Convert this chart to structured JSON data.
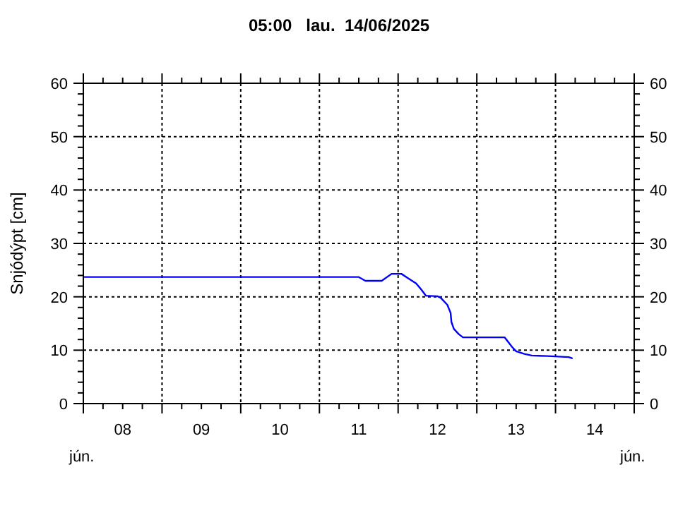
{
  "chart_data": {
    "type": "line",
    "title": "05:00   lau.  14/06/2025",
    "ylabel": "Snjódýpt [cm]",
    "x": [
      "2025-06-08T00:00",
      "2025-06-11T12:00",
      "2025-06-11T14:00",
      "2025-06-11T19:00",
      "2025-06-11T22:00",
      "2025-06-12T01:00",
      "2025-06-12T03:00",
      "2025-06-12T05:30",
      "2025-06-12T07:00",
      "2025-06-12T08:30",
      "2025-06-12T12:00",
      "2025-06-12T13:00",
      "2025-06-12T15:00",
      "2025-06-12T16:00",
      "2025-06-12T16:15",
      "2025-06-12T17:00",
      "2025-06-12T18:30",
      "2025-06-12T19:45",
      "2025-06-13T08:30",
      "2025-06-13T09:30",
      "2025-06-13T10:45",
      "2025-06-13T12:00",
      "2025-06-13T14:30",
      "2025-06-13T16:45",
      "2025-06-13T21:30",
      "2025-06-14T04:00",
      "2025-06-14T05:00"
    ],
    "series": [
      {
        "color": "#0000ff",
        "values": [
          23.7,
          23.7,
          23.0,
          23.0,
          24.3,
          24.3,
          23.5,
          22.5,
          21.4,
          20.2,
          20.1,
          19.8,
          18.5,
          17.0,
          15.3,
          14.0,
          13.0,
          12.4,
          12.4,
          11.6,
          10.6,
          9.8,
          9.3,
          9.0,
          8.9,
          8.7,
          8.5
        ]
      }
    ],
    "xlim": [
      "2025-06-08T00:00",
      "2025-06-15T00:00"
    ],
    "xticks": [
      {
        "value": "2025-06-08T00:00",
        "label": null
      },
      {
        "value": "2025-06-08T06:00",
        "label": null
      },
      {
        "value": "2025-06-08T12:00",
        "label": "08"
      },
      {
        "value": "2025-06-08T18:00",
        "label": null
      },
      {
        "value": "2025-06-09T00:00",
        "label": null
      },
      {
        "value": "2025-06-09T06:00",
        "label": null
      },
      {
        "value": "2025-06-09T12:00",
        "label": "09"
      },
      {
        "value": "2025-06-09T18:00",
        "label": null
      },
      {
        "value": "2025-06-10T00:00",
        "label": null
      },
      {
        "value": "2025-06-10T06:00",
        "label": null
      },
      {
        "value": "2025-06-10T12:00",
        "label": "10"
      },
      {
        "value": "2025-06-10T18:00",
        "label": null
      },
      {
        "value": "2025-06-11T00:00",
        "label": null
      },
      {
        "value": "2025-06-11T06:00",
        "label": null
      },
      {
        "value": "2025-06-11T12:00",
        "label": "11"
      },
      {
        "value": "2025-06-11T18:00",
        "label": null
      },
      {
        "value": "2025-06-12T00:00",
        "label": null
      },
      {
        "value": "2025-06-12T06:00",
        "label": null
      },
      {
        "value": "2025-06-12T12:00",
        "label": "12"
      },
      {
        "value": "2025-06-12T18:00",
        "label": null
      },
      {
        "value": "2025-06-13T00:00",
        "label": null
      },
      {
        "value": "2025-06-13T06:00",
        "label": null
      },
      {
        "value": "2025-06-13T12:00",
        "label": "13"
      },
      {
        "value": "2025-06-13T18:00",
        "label": null
      },
      {
        "value": "2025-06-14T00:00",
        "label": null
      },
      {
        "value": "2025-06-14T06:00",
        "label": null
      },
      {
        "value": "2025-06-14T12:00",
        "label": "14"
      },
      {
        "value": "2025-06-14T18:00",
        "label": null
      },
      {
        "value": "2025-06-15T00:00",
        "label": null
      }
    ],
    "ylim": [
      0,
      60
    ],
    "yticks": [
      0,
      {
        "value": 2,
        "label": null
      },
      {
        "value": 4,
        "label": null
      },
      {
        "value": 6,
        "label": null
      },
      {
        "value": 8,
        "label": null
      },
      10,
      {
        "value": 12,
        "label": null
      },
      {
        "value": 14,
        "label": null
      },
      {
        "value": 16,
        "label": null
      },
      {
        "value": 18,
        "label": null
      },
      20,
      {
        "value": 22,
        "label": null
      },
      {
        "value": 24,
        "label": null
      },
      {
        "value": 26,
        "label": null
      },
      {
        "value": 28,
        "label": null
      },
      30,
      {
        "value": 32,
        "label": null
      },
      {
        "value": 34,
        "label": null
      },
      {
        "value": 36,
        "label": null
      },
      {
        "value": 38,
        "label": null
      },
      40,
      {
        "value": 42,
        "label": null
      },
      {
        "value": 44,
        "label": null
      },
      {
        "value": 46,
        "label": null
      },
      {
        "value": 48,
        "label": null
      },
      50,
      {
        "value": 52,
        "label": null
      },
      {
        "value": 54,
        "label": null
      },
      {
        "value": 56,
        "label": null
      },
      {
        "value": 58,
        "label": null
      },
      60
    ],
    "y2lim": [
      0,
      60
    ],
    "y2ticks": [
      0,
      {
        "value": 2,
        "label": null
      },
      {
        "value": 4,
        "label": null
      },
      {
        "value": 6,
        "label": null
      },
      {
        "value": 8,
        "label": null
      },
      10,
      {
        "value": 12,
        "label": null
      },
      {
        "value": 14,
        "label": null
      },
      {
        "value": 16,
        "label": null
      },
      {
        "value": 18,
        "label": null
      },
      20,
      {
        "value": 22,
        "label": null
      },
      {
        "value": 24,
        "label": null
      },
      {
        "value": 26,
        "label": null
      },
      {
        "value": 28,
        "label": null
      },
      30,
      {
        "value": 32,
        "label": null
      },
      {
        "value": 34,
        "label": null
      },
      {
        "value": 36,
        "label": null
      },
      {
        "value": 38,
        "label": null
      },
      40,
      {
        "value": 42,
        "label": null
      },
      {
        "value": 44,
        "label": null
      },
      {
        "value": 46,
        "label": null
      },
      {
        "value": 48,
        "label": null
      },
      50,
      {
        "value": 52,
        "label": null
      },
      {
        "value": 54,
        "label": null
      },
      {
        "value": 56,
        "label": null
      },
      {
        "value": 58,
        "label": null
      },
      60
    ],
    "grid": true,
    "annotations": [
      "jún.",
      "jún."
    ]
  }
}
